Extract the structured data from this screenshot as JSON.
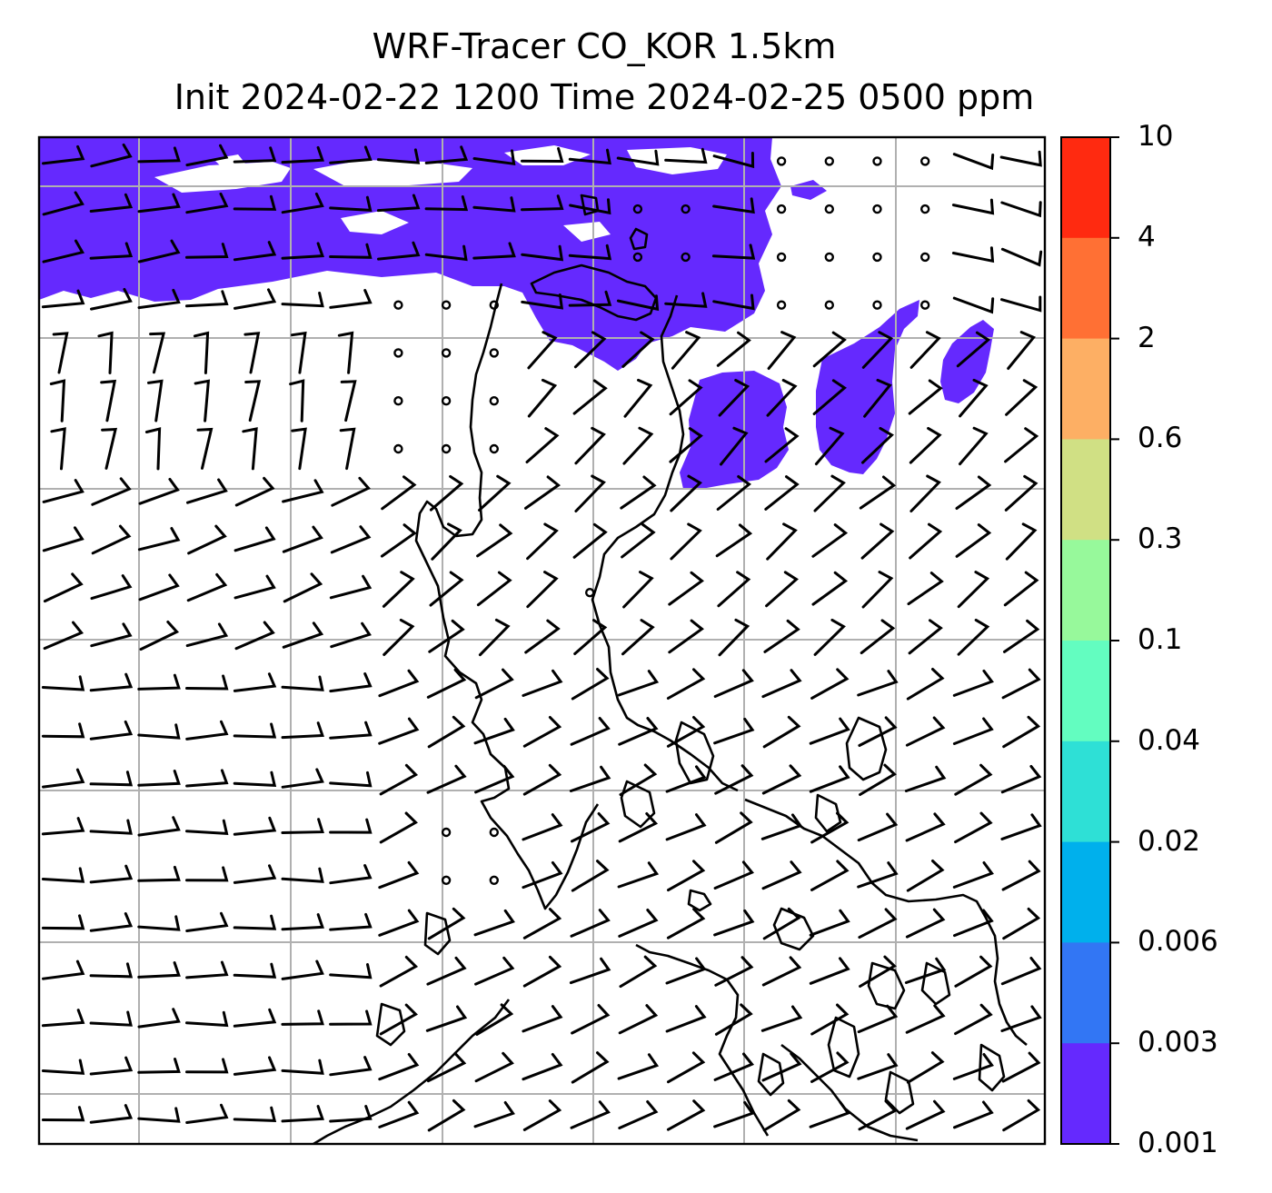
{
  "title": {
    "line1": "WRF-Tracer CO_KOR 1.5km",
    "line2": "Init 2024-02-22 1200 Time 2024-02-25 0500 ppm"
  },
  "colorbar": {
    "labels": [
      "10",
      "4",
      "2",
      "0.6",
      "0.3",
      "0.1",
      "0.04",
      "0.02",
      "0.006",
      "0.003",
      "0.001"
    ],
    "colors": [
      "#ff2a10",
      "#ff7034",
      "#fdaf64",
      "#d0e084",
      "#97f99b",
      "#63fdc0",
      "#2ee0d6",
      "#00b0ec",
      "#3276f4",
      "#6529fe"
    ]
  },
  "map": {
    "tracer_color": "#6529fe",
    "grid_color": "#b0b0b0",
    "coast_color": "#000000"
  }
}
